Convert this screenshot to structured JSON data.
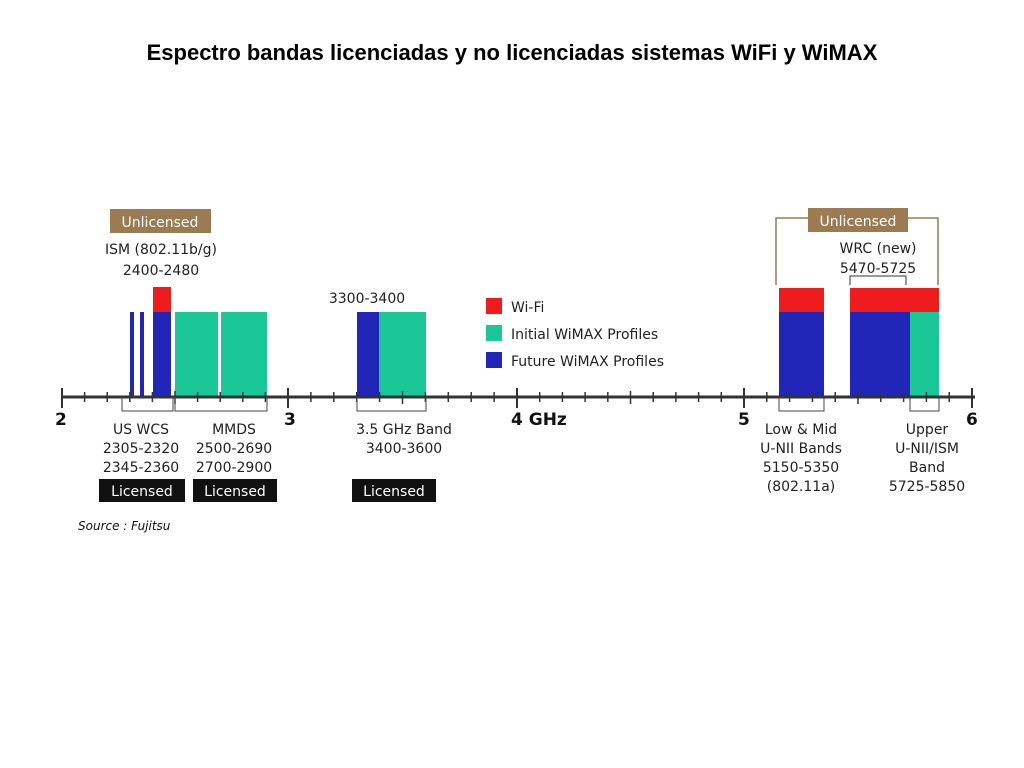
{
  "title": "Espectro bandas licenciadas y no licenciadas sistemas WiFi y WiMAX",
  "colors": {
    "wifi": "#ee1c1c",
    "initial": "#19c896",
    "future": "#2226b8",
    "unlicensed_bg": "#9c7a52",
    "licensed_bg": "#111111"
  },
  "axis": {
    "ticks": [
      "2",
      "3",
      "4 GHz",
      "5",
      "6"
    ]
  },
  "legend": [
    {
      "label": "Wi-Fi",
      "color_key": "wifi"
    },
    {
      "label": "Initial WiMAX Profiles",
      "color_key": "initial"
    },
    {
      "label": "Future WiMAX Profiles",
      "color_key": "future"
    }
  ],
  "top_labels": {
    "unlicensed_left": "Unlicensed",
    "ism_line1": "ISM (802.11b/g)",
    "ism_line2": "2400-2480",
    "band_3300": "3300-3400",
    "unlicensed_right": "Unlicensed",
    "wrc_line1": "WRC (new)",
    "wrc_line2": "5470-5725"
  },
  "bottom_labels": {
    "uswcs": [
      "US WCS",
      "2305-2320",
      "2345-2360"
    ],
    "mmds": [
      "MMDS",
      "2500-2690",
      "2700-2900"
    ],
    "band35": [
      "3.5 GHz Band",
      "3400-3600"
    ],
    "unii_low": [
      "Low & Mid",
      "U-NII Bands",
      "5150-5350",
      "(802.11a)"
    ],
    "unii_up": [
      "Upper",
      "U-NII/ISM",
      "Band",
      "5725-5850"
    ]
  },
  "licensed_label": "Licensed",
  "source": "Source : Fujitsu"
}
